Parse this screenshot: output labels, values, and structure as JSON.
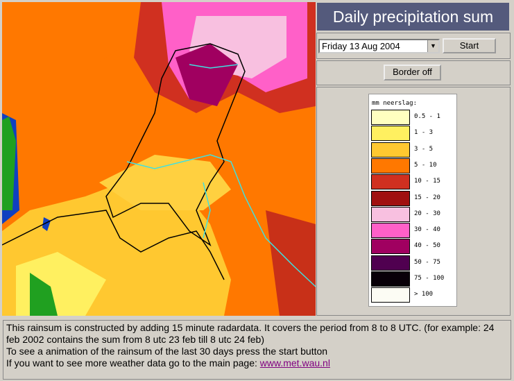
{
  "header": {
    "title": "Daily precipitation sum"
  },
  "controls": {
    "date_select": "Friday 13 Aug 2004",
    "start_button": "Start",
    "border_button": "Border off"
  },
  "legend": {
    "title": "mm neerslag:",
    "items": [
      {
        "label": "0.5 - 1",
        "color": "#ffffc0"
      },
      {
        "label": "1 - 3",
        "color": "#fff060"
      },
      {
        "label": "3 - 5",
        "color": "#ffc830"
      },
      {
        "label": "5 - 10",
        "color": "#ff7800"
      },
      {
        "label": "10 - 15",
        "color": "#d03020"
      },
      {
        "label": "15 - 20",
        "color": "#a01010"
      },
      {
        "label": "20 - 30",
        "color": "#f8c0e0"
      },
      {
        "label": "30 - 40",
        "color": "#ff60c8"
      },
      {
        "label": "40 - 50",
        "color": "#a00060"
      },
      {
        "label": "50 - 75",
        "color": "#500050"
      },
      {
        "label": "75 - 100",
        "color": "#080008"
      },
      {
        "label": "> 100",
        "color": "#fcfcf4"
      }
    ]
  },
  "footer": {
    "line1": "This rainsum is constructed by adding 15 minute radardata. It covers the period from 8 to 8 UTC. (for example: 24 feb 2002 contains the sum from 8 utc 23 feb till 8 utc 24 feb)",
    "line2": "To see a animation of the rainsum of the last 30 days press the start button",
    "line3": "If you want to see more weather data go to the main page: ",
    "link": "www.met.wau.nl"
  }
}
